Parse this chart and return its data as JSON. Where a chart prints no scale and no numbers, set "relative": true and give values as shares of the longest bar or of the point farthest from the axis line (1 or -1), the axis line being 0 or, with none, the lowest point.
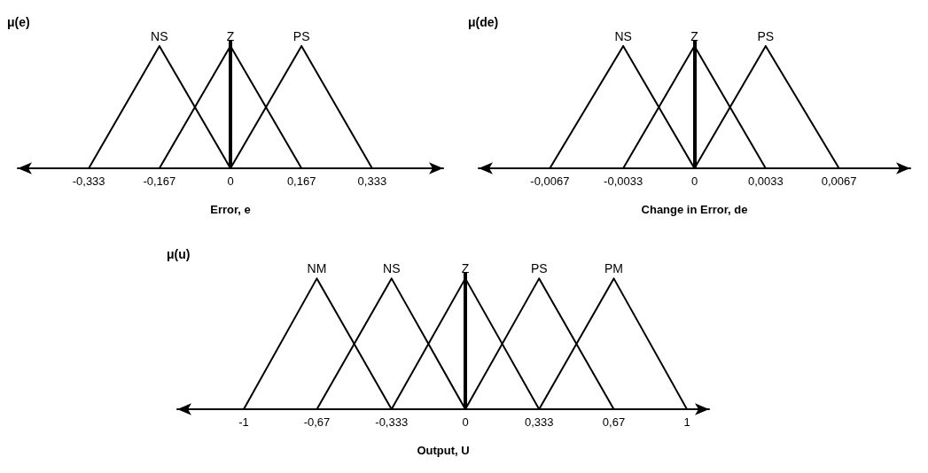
{
  "chart_data": [
    {
      "type": "line",
      "relative": true,
      "ylabel": "μ(e)",
      "xlabel": "Error, e",
      "xlim": [
        -0.5,
        0.5
      ],
      "xticks": [
        {
          "value": -0.333,
          "label": "-0,333"
        },
        {
          "value": -0.167,
          "label": "-0,167"
        },
        0,
        {
          "value": 0.167,
          "label": "0,167"
        },
        {
          "value": 0.333,
          "label": "0,333"
        }
      ],
      "marker": "none",
      "line_style": "solid",
      "grid": false,
      "legend": false,
      "series": [
        {
          "name": "NS",
          "color": "#000000",
          "x": [
            -0.333,
            -0.167,
            0
          ],
          "values": [
            0,
            1,
            0
          ]
        },
        {
          "name": "Z",
          "color": "#000000",
          "x": [
            -0.167,
            0,
            0.167
          ],
          "values": [
            0,
            1,
            0
          ]
        },
        {
          "name": "PS",
          "color": "#000000",
          "x": [
            0,
            0.167,
            0.333
          ],
          "values": [
            0,
            1,
            0
          ]
        }
      ],
      "ref_lines": [
        {
          "axis": "x",
          "value": 0,
          "color": "#000000"
        }
      ]
    },
    {
      "type": "line",
      "relative": true,
      "ylabel": "μ(de)",
      "xlabel": "Change in Error, de",
      "xlim": [
        -0.01,
        0.01
      ],
      "xticks": [
        {
          "value": -0.0067,
          "label": "-0,0067"
        },
        {
          "value": -0.0033,
          "label": "-0,0033"
        },
        0,
        {
          "value": 0.0033,
          "label": "0,0033"
        },
        {
          "value": 0.0067,
          "label": "0,0067"
        }
      ],
      "marker": "none",
      "line_style": "solid",
      "grid": false,
      "legend": false,
      "series": [
        {
          "name": "NS",
          "color": "#000000",
          "x": [
            -0.0067,
            -0.0033,
            0
          ],
          "values": [
            0,
            1,
            0
          ]
        },
        {
          "name": "Z",
          "color": "#000000",
          "x": [
            -0.0033,
            0,
            0.0033
          ],
          "values": [
            0,
            1,
            0
          ]
        },
        {
          "name": "PS",
          "color": "#000000",
          "x": [
            0,
            0.0033,
            0.0067
          ],
          "values": [
            0,
            1,
            0
          ]
        }
      ],
      "ref_lines": [
        {
          "axis": "x",
          "value": 0,
          "color": "#000000"
        }
      ]
    },
    {
      "type": "line",
      "relative": true,
      "ylabel": "μ(u)",
      "xlabel": "Output, U",
      "xlim": [
        -1.3,
        1.1
      ],
      "xticks": [
        -1,
        {
          "value": -0.67,
          "label": "-0,67"
        },
        {
          "value": -0.333,
          "label": "-0,333"
        },
        0,
        {
          "value": 0.333,
          "label": "0,333"
        },
        {
          "value": 0.67,
          "label": "0,67"
        },
        1
      ],
      "marker": "none",
      "line_style": "solid",
      "grid": false,
      "legend": false,
      "series": [
        {
          "name": "NM",
          "color": "#000000",
          "x": [
            -1,
            -0.67,
            -0.333
          ],
          "values": [
            0,
            1,
            0
          ]
        },
        {
          "name": "NS",
          "color": "#000000",
          "x": [
            -0.67,
            -0.333,
            0
          ],
          "values": [
            0,
            1,
            0
          ]
        },
        {
          "name": "Z",
          "color": "#000000",
          "x": [
            -0.333,
            0,
            0.333
          ],
          "values": [
            0,
            1,
            0
          ]
        },
        {
          "name": "PS",
          "color": "#000000",
          "x": [
            0,
            0.333,
            0.67
          ],
          "values": [
            0,
            1,
            0
          ]
        },
        {
          "name": "PM",
          "color": "#000000",
          "x": [
            0.333,
            0.67,
            1
          ],
          "values": [
            0,
            1,
            0
          ]
        }
      ],
      "ref_lines": [
        {
          "axis": "x",
          "value": 0,
          "color": "#000000"
        }
      ]
    }
  ]
}
